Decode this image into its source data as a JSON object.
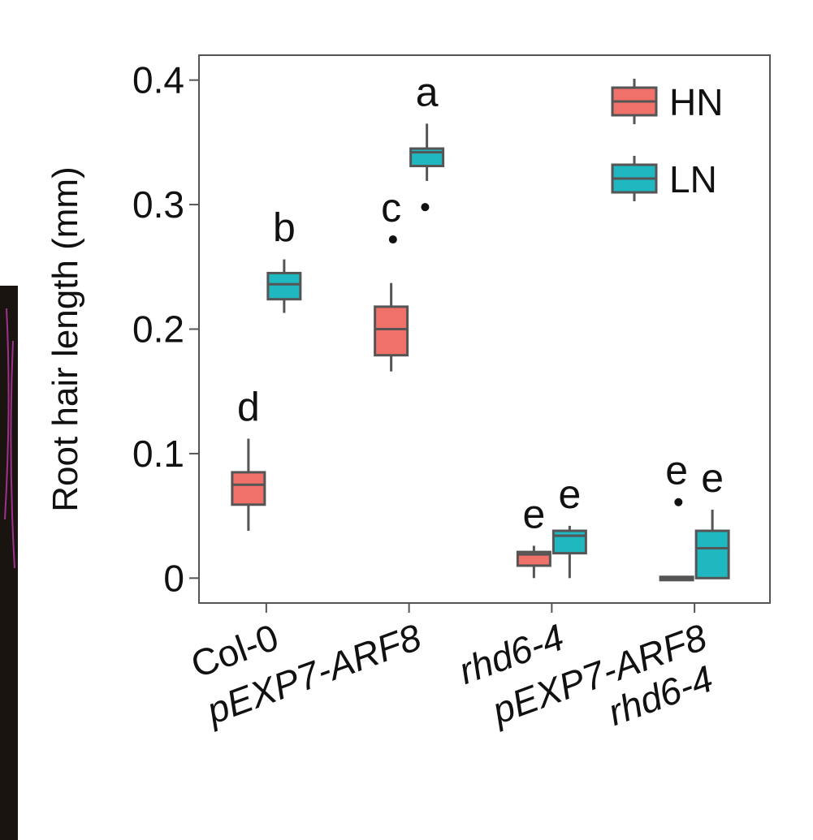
{
  "chart_data": {
    "type": "box",
    "y_label": "Root hair length (mm)",
    "categories": [
      "Col-0",
      "pEXP7-ARF8",
      "rhd6-4",
      "pEXP7-ARF8\nrhd6-4"
    ],
    "italic_categories": [
      false,
      true,
      true,
      true
    ],
    "ylim": [
      -0.02,
      0.42
    ],
    "yticks": [
      0,
      0.1,
      0.2,
      0.3,
      0.4
    ],
    "legend_position": "upper right",
    "series": [
      {
        "name": "HN",
        "color": "#f0706a",
        "boxes": [
          {
            "min": 0.038,
            "q1": 0.059,
            "median": 0.075,
            "q3": 0.085,
            "max": 0.112,
            "outliers": []
          },
          {
            "min": 0.166,
            "q1": 0.179,
            "median": 0.2,
            "q3": 0.218,
            "max": 0.237,
            "outliers": [
              0.272
            ]
          },
          {
            "min": 0,
            "q1": 0.01,
            "median": 0.019,
            "q3": 0.021,
            "max": 0.026,
            "outliers": []
          },
          {
            "min": 0,
            "q1": 0,
            "median": 0,
            "q3": 0.001,
            "max": 0.001,
            "outliers": [
              0.061
            ]
          }
        ],
        "letters": [
          "d",
          "c",
          "e",
          "e"
        ]
      },
      {
        "name": "LN",
        "color": "#1fb8c0",
        "boxes": [
          {
            "min": 0.213,
            "q1": 0.224,
            "median": 0.236,
            "q3": 0.245,
            "max": 0.256,
            "outliers": []
          },
          {
            "min": 0.319,
            "q1": 0.331,
            "median": 0.342,
            "q3": 0.345,
            "max": 0.365,
            "outliers": [
              0.298
            ]
          },
          {
            "min": 0,
            "q1": 0.02,
            "median": 0.034,
            "q3": 0.038,
            "max": 0.042,
            "outliers": []
          },
          {
            "min": 0,
            "q1": 0,
            "median": 0.024,
            "q3": 0.038,
            "max": 0.055,
            "outliers": []
          }
        ],
        "letters": [
          "b",
          "a",
          "e",
          "e"
        ]
      }
    ]
  }
}
